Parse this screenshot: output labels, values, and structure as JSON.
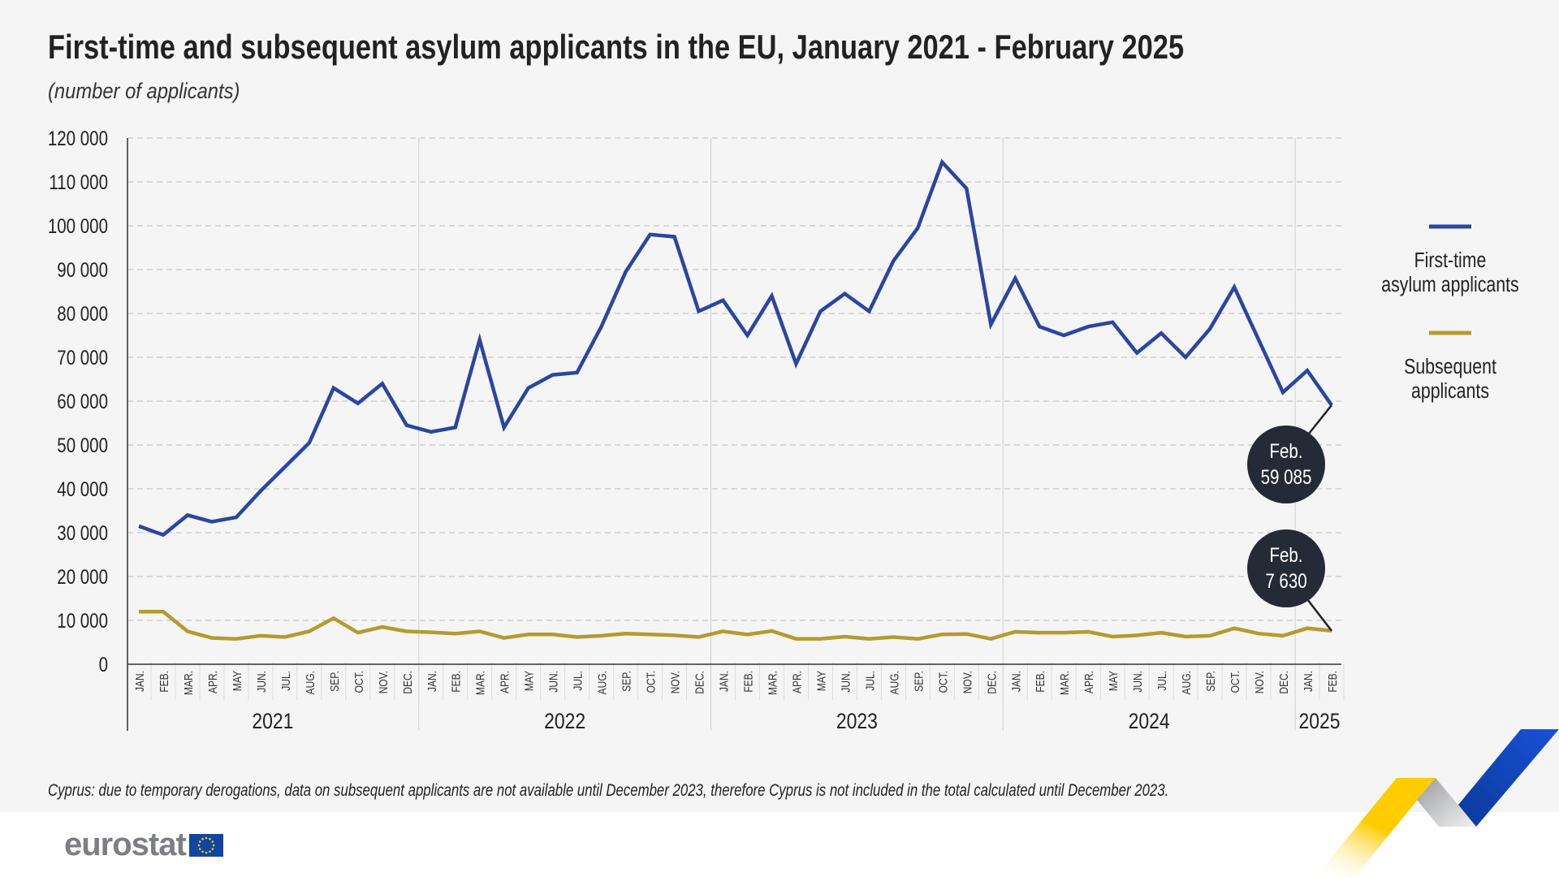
{
  "title": "First-time and subsequent asylum applicants in the EU, January 2021 - February 2025",
  "subtitle": "(number of applicants)",
  "footnote": "Cyprus: due to temporary derogations, data on subsequent applicants are not available until December 2023, therefore Cyprus is not included in the total calculated until December 2023.",
  "logo": {
    "text": "eurostat",
    "flag_color": "#0e47a1"
  },
  "colors": {
    "first_time": "#2a46a0",
    "subsequent": "#b59a30",
    "callout": "#242a36"
  },
  "chart_data": {
    "type": "line",
    "title": "First-time and subsequent asylum applicants in the EU, January 2021 - February 2025",
    "ylabel": "",
    "xlabel": "",
    "ylim": [
      0,
      120000
    ],
    "yticks": [
      0,
      10000,
      20000,
      30000,
      40000,
      50000,
      60000,
      70000,
      80000,
      90000,
      100000,
      110000,
      120000
    ],
    "ytick_labels": [
      "0",
      "10 000",
      "20 000",
      "30 000",
      "40 000",
      "50 000",
      "60 000",
      "70 000",
      "80 000",
      "90 000",
      "100 000",
      "110 000",
      "120 000"
    ],
    "grid": "horizontal dashed",
    "legend_placement": "right",
    "months": [
      "JAN.",
      "FEB.",
      "MAR.",
      "APR.",
      "MAY",
      "JUN.",
      "JUL.",
      "AUG.",
      "SEP.",
      "OCT.",
      "NOV.",
      "DEC."
    ],
    "years": [
      {
        "label": "2021",
        "months": 12
      },
      {
        "label": "2022",
        "months": 12
      },
      {
        "label": "2023",
        "months": 12
      },
      {
        "label": "2024",
        "months": 12
      },
      {
        "label": "2025",
        "months": 2
      }
    ],
    "series": [
      {
        "name": "First-time asylum applicants",
        "legend_lines": [
          "First-time",
          "asylum applicants"
        ],
        "color": "#2a46a0",
        "values": [
          31500,
          29500,
          34000,
          32500,
          33500,
          39500,
          45000,
          50500,
          63000,
          59500,
          64000,
          54500,
          53000,
          54000,
          74000,
          54000,
          63000,
          66000,
          66500,
          77000,
          89500,
          98000,
          97500,
          80500,
          83000,
          75000,
          84000,
          68500,
          80500,
          84500,
          80500,
          92000,
          99500,
          114500,
          108500,
          77500,
          88000,
          77000,
          75000,
          77000,
          78000,
          71000,
          75500,
          70000,
          76500,
          86000,
          74000,
          62000,
          67000,
          59085
        ],
        "callout": {
          "month": "Feb.",
          "value": "59 085"
        }
      },
      {
        "name": "Subsequent applicants",
        "legend_lines": [
          "Subsequent",
          "applicants"
        ],
        "color": "#b59a30",
        "values": [
          12000,
          12000,
          7500,
          6000,
          5800,
          6500,
          6200,
          7500,
          10500,
          7200,
          8500,
          7500,
          7300,
          7000,
          7500,
          6000,
          6800,
          6800,
          6200,
          6500,
          7000,
          6800,
          6600,
          6200,
          7500,
          6800,
          7600,
          5800,
          5800,
          6300,
          5800,
          6200,
          5800,
          6800,
          6900,
          5800,
          7400,
          7200,
          7200,
          7400,
          6300,
          6600,
          7200,
          6300,
          6500,
          8200,
          7000,
          6500,
          8200,
          7630
        ],
        "callout": {
          "month": "Feb.",
          "value": "7 630"
        }
      }
    ]
  }
}
